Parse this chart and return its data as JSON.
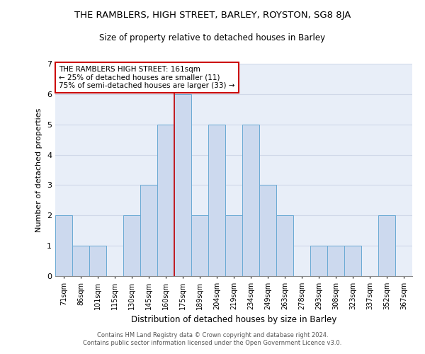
{
  "title": "THE RAMBLERS, HIGH STREET, BARLEY, ROYSTON, SG8 8JA",
  "subtitle": "Size of property relative to detached houses in Barley",
  "xlabel": "Distribution of detached houses by size in Barley",
  "ylabel": "Number of detached properties",
  "footer_line1": "Contains HM Land Registry data © Crown copyright and database right 2024.",
  "footer_line2": "Contains public sector information licensed under the Open Government Licence v3.0.",
  "bin_labels": [
    "71sqm",
    "86sqm",
    "101sqm",
    "115sqm",
    "130sqm",
    "145sqm",
    "160sqm",
    "175sqm",
    "189sqm",
    "204sqm",
    "219sqm",
    "234sqm",
    "249sqm",
    "263sqm",
    "278sqm",
    "293sqm",
    "308sqm",
    "323sqm",
    "337sqm",
    "352sqm",
    "367sqm"
  ],
  "bar_heights": [
    2,
    1,
    1,
    0,
    2,
    3,
    5,
    6,
    2,
    5,
    2,
    5,
    3,
    2,
    0,
    1,
    1,
    1,
    0,
    2,
    0
  ],
  "bar_color": "#ccd9ee",
  "bar_edge_color": "#6aaad4",
  "reference_line_color": "#cc0000",
  "annotation_title": "THE RAMBLERS HIGH STREET: 161sqm",
  "annotation_line1": "← 25% of detached houses are smaller (11)",
  "annotation_line2": "75% of semi-detached houses are larger (33) →",
  "annotation_box_edge": "#cc0000",
  "ylim": [
    0,
    7
  ],
  "yticks": [
    0,
    1,
    2,
    3,
    4,
    5,
    6,
    7
  ],
  "grid_color": "#d0d8e8",
  "background_color": "#e8eef8"
}
